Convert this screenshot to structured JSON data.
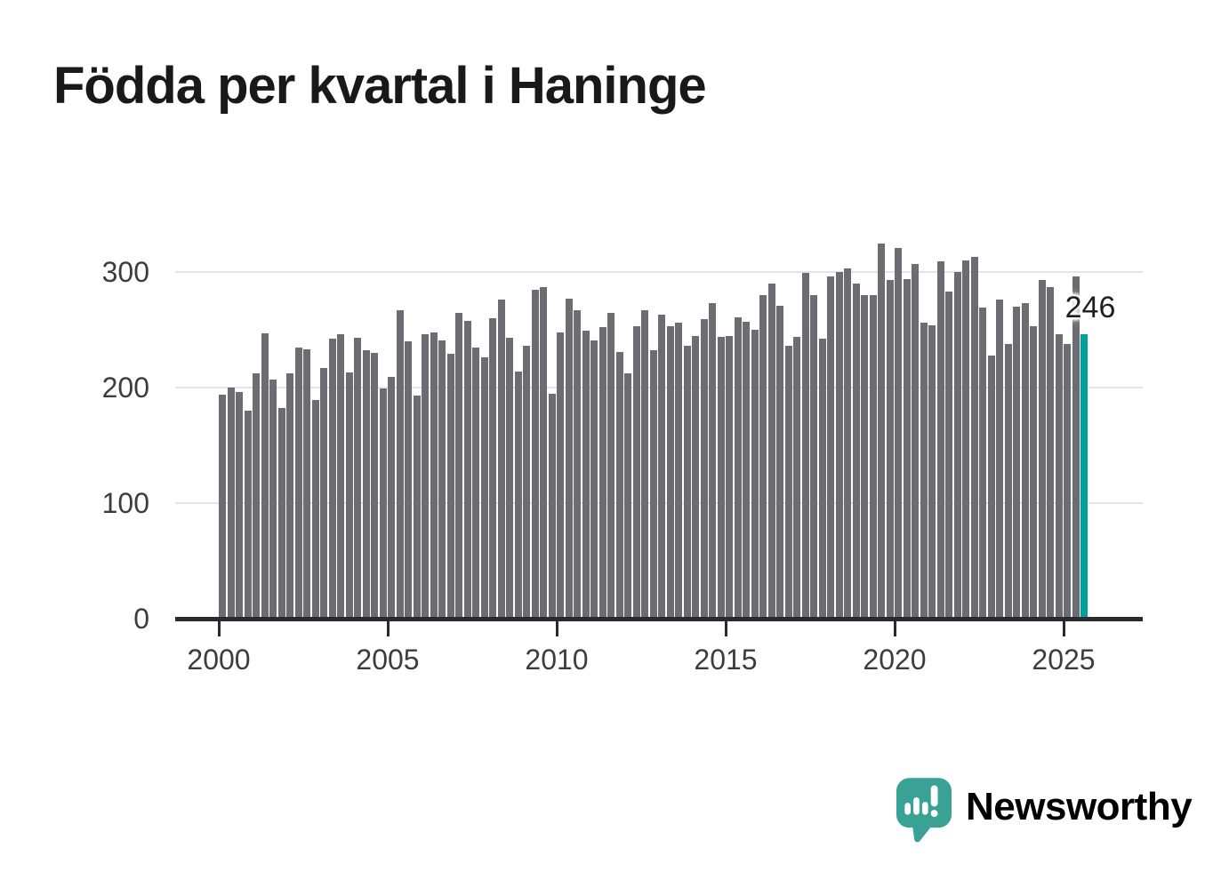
{
  "title": "Födda per kvartal i Haninge",
  "colors": {
    "background": "#ffffff",
    "bar": "#6d6c72",
    "highlight": "#00a09b",
    "grid": "#e5e5e7",
    "axis": "#2b2a30",
    "tick_text": "#3d3d3d",
    "title_text": "#191919",
    "annotation_text": "#1f1f1f",
    "logo": "#3aa294",
    "logo_text": "#2d9e92"
  },
  "logo": {
    "text": "Newsworthy",
    "icon": "newsworthy-speech-bubble-chart-icon"
  },
  "chart_data": {
    "type": "bar",
    "title": "Födda per kvartal i Haninge",
    "xlabel": "",
    "ylabel": "",
    "ylim": [
      0,
      336
    ],
    "grid": "horizontal",
    "legend": "none",
    "y_tick_labels": [
      "0",
      "100",
      "200",
      "300"
    ],
    "y_tick_values": [
      0,
      100,
      200,
      300
    ],
    "x_tick_labels": [
      "2000",
      "2005",
      "2010",
      "2015",
      "2020",
      "2025"
    ],
    "categories": [
      "2000Q1",
      "2000Q2",
      "2000Q3",
      "2000Q4",
      "2001Q1",
      "2001Q2",
      "2001Q3",
      "2001Q4",
      "2002Q1",
      "2002Q2",
      "2002Q3",
      "2002Q4",
      "2003Q1",
      "2003Q2",
      "2003Q3",
      "2003Q4",
      "2004Q1",
      "2004Q2",
      "2004Q3",
      "2004Q4",
      "2005Q1",
      "2005Q2",
      "2005Q3",
      "2005Q4",
      "2006Q1",
      "2006Q2",
      "2006Q3",
      "2006Q4",
      "2007Q1",
      "2007Q2",
      "2007Q3",
      "2007Q4",
      "2008Q1",
      "2008Q2",
      "2008Q3",
      "2008Q4",
      "2009Q1",
      "2009Q2",
      "2009Q3",
      "2009Q4",
      "2010Q1",
      "2010Q2",
      "2010Q3",
      "2010Q4",
      "2011Q1",
      "2011Q2",
      "2011Q3",
      "2011Q4",
      "2012Q1",
      "2012Q2",
      "2012Q3",
      "2012Q4",
      "2013Q1",
      "2013Q2",
      "2013Q3",
      "2013Q4",
      "2014Q1",
      "2014Q2",
      "2014Q3",
      "2014Q4",
      "2015Q1",
      "2015Q2",
      "2015Q3",
      "2015Q4",
      "2016Q1",
      "2016Q2",
      "2016Q3",
      "2016Q4",
      "2017Q1",
      "2017Q2",
      "2017Q3",
      "2017Q4",
      "2018Q1",
      "2018Q2",
      "2018Q3",
      "2018Q4",
      "2019Q1",
      "2019Q2",
      "2019Q3",
      "2019Q4",
      "2020Q1",
      "2020Q2",
      "2020Q3",
      "2020Q4",
      "2021Q1",
      "2021Q2",
      "2021Q3",
      "2021Q4",
      "2022Q1",
      "2022Q2",
      "2022Q3",
      "2022Q4",
      "2023Q1",
      "2023Q2",
      "2023Q3",
      "2023Q4",
      "2024Q1",
      "2024Q2",
      "2024Q3",
      "2024Q4",
      "2025Q1",
      "2025Q2",
      "2025Q3"
    ],
    "values": [
      194,
      200,
      196,
      180,
      212,
      247,
      207,
      182,
      212,
      235,
      233,
      189,
      217,
      242,
      246,
      213,
      243,
      232,
      230,
      199,
      209,
      267,
      240,
      193,
      246,
      248,
      241,
      229,
      265,
      258,
      235,
      226,
      260,
      276,
      243,
      214,
      236,
      285,
      287,
      195,
      248,
      277,
      267,
      249,
      241,
      252,
      265,
      231,
      212,
      253,
      267,
      232,
      263,
      253,
      256,
      236,
      245,
      259,
      273,
      244,
      245,
      261,
      257,
      250,
      280,
      290,
      271,
      236,
      244,
      299,
      280,
      242,
      296,
      300,
      303,
      290,
      280,
      280,
      325,
      293,
      321,
      294,
      307,
      256,
      254,
      309,
      283,
      300,
      310,
      313,
      269,
      228,
      276,
      238,
      270,
      273,
      253,
      293,
      287,
      246,
      238,
      296,
      246
    ],
    "highlight_index": 102,
    "highlight_label": "246"
  }
}
